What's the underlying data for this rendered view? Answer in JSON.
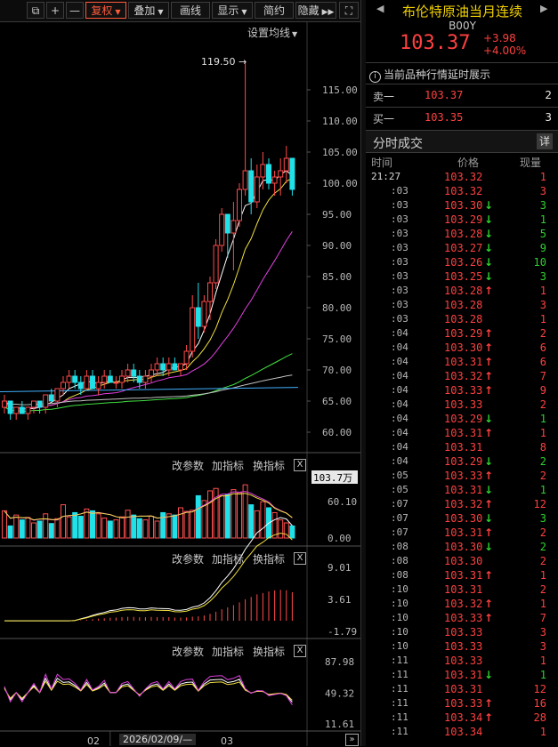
{
  "toolbar": {
    "buttons": [
      "⧉",
      "+",
      "—"
    ],
    "fuquan": "复权",
    "diejia": "叠加",
    "huaxian": "画线",
    "xianshi": "显示",
    "jianyue": "简约",
    "yincang": "隐藏"
  },
  "main": {
    "setting_label": "设置均线",
    "peak_label": "119.50",
    "y_ticks": [
      "115.00",
      "110.00",
      "105.00",
      "100.00",
      "95.00",
      "90.00",
      "85.00",
      "80.00",
      "75.00",
      "70.00",
      "65.00",
      "60.00"
    ],
    "candles": [
      [
        64,
        66,
        63,
        65
      ],
      [
        65,
        65,
        62,
        63
      ],
      [
        63,
        64,
        62,
        64
      ],
      [
        64,
        65,
        63,
        63
      ],
      [
        63,
        64,
        62,
        64
      ],
      [
        64,
        65,
        63,
        65
      ],
      [
        65,
        65,
        63,
        64
      ],
      [
        64,
        66,
        63,
        66
      ],
      [
        66,
        67,
        65,
        65
      ],
      [
        65,
        67,
        64,
        67
      ],
      [
        67,
        69,
        66,
        68
      ],
      [
        68,
        70,
        67,
        69
      ],
      [
        69,
        70,
        67,
        68
      ],
      [
        68,
        69,
        66,
        67
      ],
      [
        67,
        70,
        67,
        69
      ],
      [
        69,
        70,
        67,
        67
      ],
      [
        67,
        69,
        66,
        68
      ],
      [
        68,
        70,
        67,
        69
      ],
      [
        69,
        70,
        68,
        68
      ],
      [
        68,
        69,
        67,
        68
      ],
      [
        68,
        70,
        67,
        69
      ],
      [
        69,
        71,
        68,
        70
      ],
      [
        70,
        71,
        68,
        69
      ],
      [
        69,
        70,
        67,
        68
      ],
      [
        68,
        70,
        67,
        69
      ],
      [
        69,
        71,
        68,
        70
      ],
      [
        70,
        72,
        69,
        71
      ],
      [
        71,
        72,
        69,
        70
      ],
      [
        70,
        72,
        69,
        71
      ],
      [
        71,
        72,
        70,
        70
      ],
      [
        70,
        71,
        69,
        71
      ],
      [
        71,
        74,
        70,
        73
      ],
      [
        73,
        82,
        72,
        80
      ],
      [
        80,
        84,
        75,
        77
      ],
      [
        77,
        82,
        76,
        81
      ],
      [
        81,
        85,
        78,
        84
      ],
      [
        84,
        91,
        83,
        90
      ],
      [
        90,
        96,
        89,
        95
      ],
      [
        95,
        95,
        88,
        92
      ],
      [
        92,
        97,
        86,
        94
      ],
      [
        94,
        100,
        93,
        99
      ],
      [
        99,
        119.5,
        98,
        102
      ],
      [
        102,
        104,
        95,
        97
      ],
      [
        97,
        103,
        96,
        101
      ],
      [
        101,
        105,
        99,
        103
      ],
      [
        103,
        104,
        99,
        100
      ],
      [
        100,
        102,
        98,
        101
      ],
      [
        101,
        104,
        98,
        102
      ],
      [
        102,
        106,
        100,
        104
      ],
      [
        104,
        104,
        98,
        99
      ]
    ],
    "ma": {
      "white": "",
      "yellow": "",
      "magenta": "",
      "green": "",
      "gray": ""
    }
  },
  "vol": {
    "label_gaicanshu": "改参数",
    "label_jiazhibiao": "加指标",
    "label_huanzhibiao": "换指标",
    "close": "X",
    "y_ticks": [
      "103.7万",
      "60.10",
      "0.00"
    ],
    "bars": [
      45,
      20,
      38,
      30,
      34,
      25,
      28,
      40,
      24,
      32,
      55,
      35,
      42,
      36,
      48,
      45,
      40,
      33,
      28,
      30,
      35,
      46,
      38,
      32,
      30,
      36,
      28,
      42,
      40,
      38,
      50,
      44,
      46,
      70,
      62,
      78,
      82,
      70,
      72,
      80,
      75,
      88,
      55,
      45,
      60,
      50,
      42,
      30,
      25,
      20
    ]
  },
  "macd": {
    "label_gaicanshu": "改参数",
    "label_jiazhibiao": "加指标",
    "label_huanzhibiao": "换指标",
    "close": "X",
    "y_ticks": [
      "9.01",
      "3.61",
      "-1.79"
    ]
  },
  "kdj": {
    "label_gaicanshu": "改参数",
    "label_jiazhibiao": "加指标",
    "label_huanzhibiao": "换指标",
    "close": "X",
    "y_ticks": [
      "87.98",
      "49.32",
      "11.61"
    ]
  },
  "xaxis": {
    "labels": [
      "02",
      "2026/02/09/—",
      "03"
    ],
    "end_icon": "»"
  },
  "panel": {
    "title": "布伦特原油当月连续",
    "code": "B00Y",
    "price": "103.37",
    "change": "+3.98",
    "change_pct": "+4.00%",
    "notice": "当前品种行情延时展示",
    "sell_label": "卖一",
    "sell_price": "103.37",
    "sell_vol": "2",
    "buy_label": "买一",
    "buy_price": "103.35",
    "buy_vol": "3",
    "ticks_title": "分时成交",
    "detail": "详",
    "col_time": "时间",
    "col_price": "价格",
    "col_vol": "现量",
    "ticks": [
      {
        "t": "21:27",
        "p": "103.32",
        "a": "",
        "v": "1"
      },
      {
        "t": ":03",
        "p": "103.32",
        "a": "",
        "v": "3"
      },
      {
        "t": ":03",
        "p": "103.30",
        "a": "↓",
        "v": "3"
      },
      {
        "t": ":03",
        "p": "103.29",
        "a": "↓",
        "v": "1"
      },
      {
        "t": ":03",
        "p": "103.28",
        "a": "↓",
        "v": "5"
      },
      {
        "t": ":03",
        "p": "103.27",
        "a": "↓",
        "v": "9"
      },
      {
        "t": ":03",
        "p": "103.26",
        "a": "↓",
        "v": "10"
      },
      {
        "t": ":03",
        "p": "103.25",
        "a": "↓",
        "v": "3"
      },
      {
        "t": ":03",
        "p": "103.28",
        "a": "↑",
        "v": "1"
      },
      {
        "t": ":03",
        "p": "103.28",
        "a": "",
        "v": "3"
      },
      {
        "t": ":03",
        "p": "103.28",
        "a": "",
        "v": "1"
      },
      {
        "t": ":04",
        "p": "103.29",
        "a": "↑",
        "v": "2"
      },
      {
        "t": ":04",
        "p": "103.30",
        "a": "↑",
        "v": "6"
      },
      {
        "t": ":04",
        "p": "103.31",
        "a": "↑",
        "v": "6"
      },
      {
        "t": ":04",
        "p": "103.32",
        "a": "↑",
        "v": "7"
      },
      {
        "t": ":04",
        "p": "103.33",
        "a": "↑",
        "v": "9"
      },
      {
        "t": ":04",
        "p": "103.33",
        "a": "",
        "v": "2"
      },
      {
        "t": ":04",
        "p": "103.29",
        "a": "↓",
        "v": "1"
      },
      {
        "t": ":04",
        "p": "103.31",
        "a": "↑",
        "v": "1"
      },
      {
        "t": ":04",
        "p": "103.31",
        "a": "",
        "v": "8"
      },
      {
        "t": ":04",
        "p": "103.29",
        "a": "↓",
        "v": "2"
      },
      {
        "t": ":05",
        "p": "103.33",
        "a": "↑",
        "v": "2"
      },
      {
        "t": ":05",
        "p": "103.31",
        "a": "↓",
        "v": "1"
      },
      {
        "t": ":07",
        "p": "103.32",
        "a": "↑",
        "v": "12"
      },
      {
        "t": ":07",
        "p": "103.30",
        "a": "↓",
        "v": "3"
      },
      {
        "t": ":07",
        "p": "103.31",
        "a": "↑",
        "v": "2"
      },
      {
        "t": ":08",
        "p": "103.30",
        "a": "↓",
        "v": "2"
      },
      {
        "t": ":08",
        "p": "103.30",
        "a": "",
        "v": "2"
      },
      {
        "t": ":08",
        "p": "103.31",
        "a": "↑",
        "v": "1"
      },
      {
        "t": ":10",
        "p": "103.31",
        "a": "",
        "v": "2"
      },
      {
        "t": ":10",
        "p": "103.32",
        "a": "↑",
        "v": "1"
      },
      {
        "t": ":10",
        "p": "103.33",
        "a": "↑",
        "v": "7"
      },
      {
        "t": ":10",
        "p": "103.33",
        "a": "",
        "v": "3"
      },
      {
        "t": ":10",
        "p": "103.33",
        "a": "",
        "v": "3"
      },
      {
        "t": ":11",
        "p": "103.33",
        "a": "",
        "v": "1"
      },
      {
        "t": ":11",
        "p": "103.31",
        "a": "↓",
        "v": "1"
      },
      {
        "t": ":11",
        "p": "103.31",
        "a": "",
        "v": "12"
      },
      {
        "t": ":11",
        "p": "103.33",
        "a": "↑",
        "v": "16"
      },
      {
        "t": ":11",
        "p": "103.34",
        "a": "↑",
        "v": "28"
      },
      {
        "t": ":11",
        "p": "103.34",
        "a": "",
        "v": "1"
      }
    ]
  }
}
